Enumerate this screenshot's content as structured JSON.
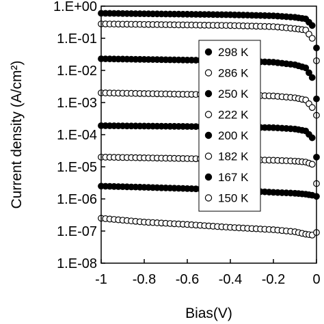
{
  "chart_data": {
    "type": "scatter",
    "xlabel": "Bias(V)",
    "ylabel": "Current density (A/cm²)",
    "yscale": "log",
    "xlim": [
      -1,
      0
    ],
    "ylim": [
      1e-08,
      1
    ],
    "x_ticks": [
      -1,
      -0.8,
      -0.6,
      -0.4,
      -0.2,
      0
    ],
    "x_tick_labels": [
      "-1",
      "-0.8",
      "-0.6",
      "-0.4",
      "-0.2",
      "0"
    ],
    "y_ticks": [
      1,
      0.1,
      0.01,
      0.001,
      0.0001,
      1e-05,
      1e-06,
      1e-07,
      1e-08
    ],
    "y_tick_labels": [
      "1.E+00",
      "1.E-01",
      "1.E-02",
      "1.E-03",
      "1.E-04",
      "1.E-05",
      "1.E-06",
      "1.E-07",
      "1.E-08"
    ],
    "grid": false,
    "legend_position": "right-center",
    "series": [
      {
        "name": "298 K",
        "marker": "filled",
        "x": [
          -1,
          -0.8,
          -0.6,
          -0.4,
          -0.2,
          -0.1,
          -0.05,
          -0.02,
          0
        ],
        "y": [
          0.6,
          0.58,
          0.56,
          0.54,
          0.5,
          0.45,
          0.4,
          0.25,
          0.05
        ]
      },
      {
        "name": "286 K",
        "marker": "open",
        "x": [
          -1,
          -0.8,
          -0.6,
          -0.4,
          -0.2,
          -0.1,
          -0.05,
          -0.02,
          0
        ],
        "y": [
          0.28,
          0.27,
          0.26,
          0.25,
          0.23,
          0.2,
          0.18,
          0.1,
          0.02
        ]
      },
      {
        "name": "250 K",
        "marker": "filled",
        "x": [
          -1,
          -0.8,
          -0.6,
          -0.4,
          -0.2,
          -0.1,
          -0.05,
          -0.02,
          0
        ],
        "y": [
          0.023,
          0.022,
          0.021,
          0.02,
          0.018,
          0.015,
          0.012,
          0.006,
          0.0013
        ]
      },
      {
        "name": "222 K",
        "marker": "open",
        "x": [
          -1,
          -0.8,
          -0.6,
          -0.4,
          -0.2,
          -0.1,
          -0.05,
          -0.02,
          0
        ],
        "y": [
          0.002,
          0.0019,
          0.0018,
          0.00175,
          0.0016,
          0.0014,
          0.0012,
          0.0007,
          0.0004
        ]
      },
      {
        "name": "200 K",
        "marker": "filled",
        "x": [
          -1,
          -0.8,
          -0.6,
          -0.4,
          -0.2,
          -0.1,
          -0.05,
          -0.02,
          0
        ],
        "y": [
          0.00019,
          0.000185,
          0.00018,
          0.000172,
          0.000165,
          0.00015,
          0.00013,
          8e-05,
          2e-05
        ]
      },
      {
        "name": "182 K",
        "marker": "open",
        "x": [
          -1,
          -0.8,
          -0.6,
          -0.4,
          -0.2,
          -0.1,
          -0.05,
          -0.02,
          0
        ],
        "y": [
          2e-05,
          1.9e-05,
          1.8e-05,
          1.7e-05,
          1.6e-05,
          1.5e-05,
          1.4e-05,
          1.2e-05,
          3e-06
        ]
      },
      {
        "name": "167 K",
        "marker": "filled",
        "x": [
          -1,
          -0.8,
          -0.6,
          -0.4,
          -0.2,
          -0.1,
          -0.05,
          -0.02,
          0
        ],
        "y": [
          2.5e-06,
          2.3e-06,
          2.1e-06,
          1.9e-06,
          1.6e-06,
          1.5e-06,
          1.4e-06,
          1.3e-06,
          1.2e-06
        ]
      },
      {
        "name": "150 K",
        "marker": "open",
        "x": [
          -1,
          -0.8,
          -0.6,
          -0.4,
          -0.2,
          -0.1,
          -0.05,
          -0.02,
          0
        ],
        "y": [
          2.5e-07,
          1.9e-07,
          1.6e-07,
          1.3e-07,
          1.1e-07,
          9.5e-08,
          8e-08,
          7.5e-08,
          9e-08
        ]
      }
    ]
  }
}
